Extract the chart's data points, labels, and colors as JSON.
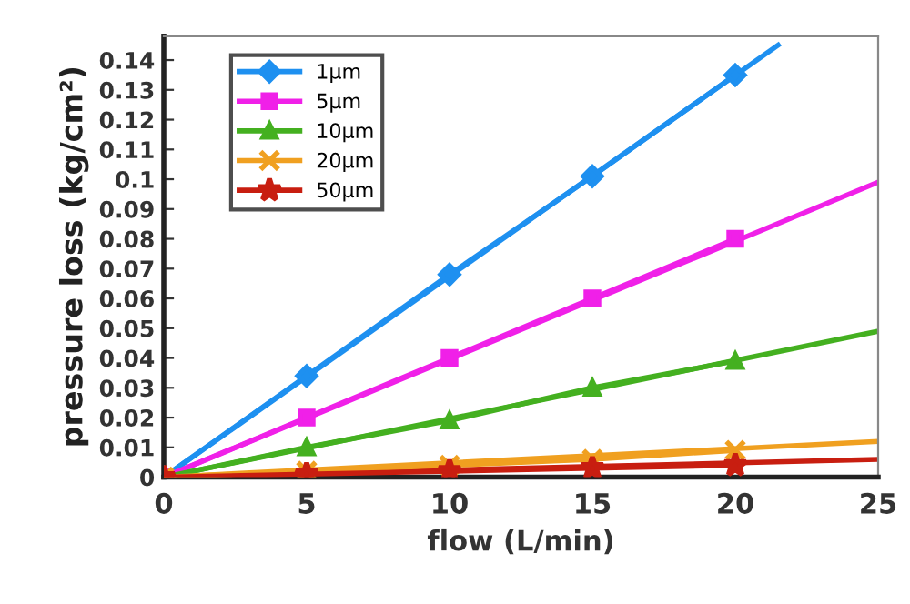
{
  "chart_data": {
    "type": "line",
    "xlabel": "flow (L/min)",
    "ylabel": "pressure loss (kg/cm²)",
    "xlim": [
      0,
      25
    ],
    "ylim": [
      0,
      0.148
    ],
    "xticks": [
      0,
      5,
      10,
      15,
      20,
      25
    ],
    "yticks": [
      0,
      0.01,
      0.02,
      0.03,
      0.04,
      0.05,
      0.06,
      0.07,
      0.08,
      0.09,
      0.1,
      0.11,
      0.12,
      0.13,
      0.14
    ],
    "grid": false,
    "legend": "top left",
    "series": [
      {
        "name": "1μm",
        "color": "#1e90f0",
        "marker": "diamond",
        "x": [
          0,
          5,
          10,
          15,
          20
        ],
        "values": [
          0,
          0.034,
          0.068,
          0.101,
          0.135
        ]
      },
      {
        "name": "5μm",
        "color": "#f020e8",
        "marker": "square",
        "x": [
          0,
          5,
          10,
          15,
          20
        ],
        "values": [
          0,
          0.02,
          0.04,
          0.06,
          0.08
        ]
      },
      {
        "name": "10μm",
        "color": "#44b020",
        "marker": "triangle",
        "x": [
          0,
          5,
          10,
          15,
          20
        ],
        "values": [
          0,
          0.01,
          0.019,
          0.03,
          0.039
        ]
      },
      {
        "name": "20μm",
        "color": "#f0a020",
        "marker": "cross",
        "x": [
          0,
          5,
          10,
          15,
          20
        ],
        "values": [
          0,
          0.002,
          0.004,
          0.006,
          0.009
        ]
      },
      {
        "name": "50μm",
        "color": "#c81e10",
        "marker": "star",
        "x": [
          0,
          5,
          10,
          15,
          20
        ],
        "values": [
          0,
          0.001,
          0.002,
          0.003,
          0.004
        ]
      },
      {
        "color": "#1e90f0",
        "marker": "none",
        "x": [
          0,
          21.5
        ],
        "values": [
          0,
          0.145
        ]
      },
      {
        "color": "#f020e8",
        "marker": "none",
        "x": [
          0,
          25
        ],
        "values": [
          0,
          0.099
        ]
      },
      {
        "color": "#44b020",
        "marker": "none",
        "x": [
          0,
          25
        ],
        "values": [
          0,
          0.049
        ]
      },
      {
        "color": "#f0a020",
        "marker": "none",
        "x": [
          0,
          25
        ],
        "values": [
          0,
          0.012
        ]
      },
      {
        "color": "#c81e10",
        "marker": "none",
        "x": [
          0,
          25
        ],
        "values": [
          0,
          0.006
        ]
      }
    ]
  }
}
